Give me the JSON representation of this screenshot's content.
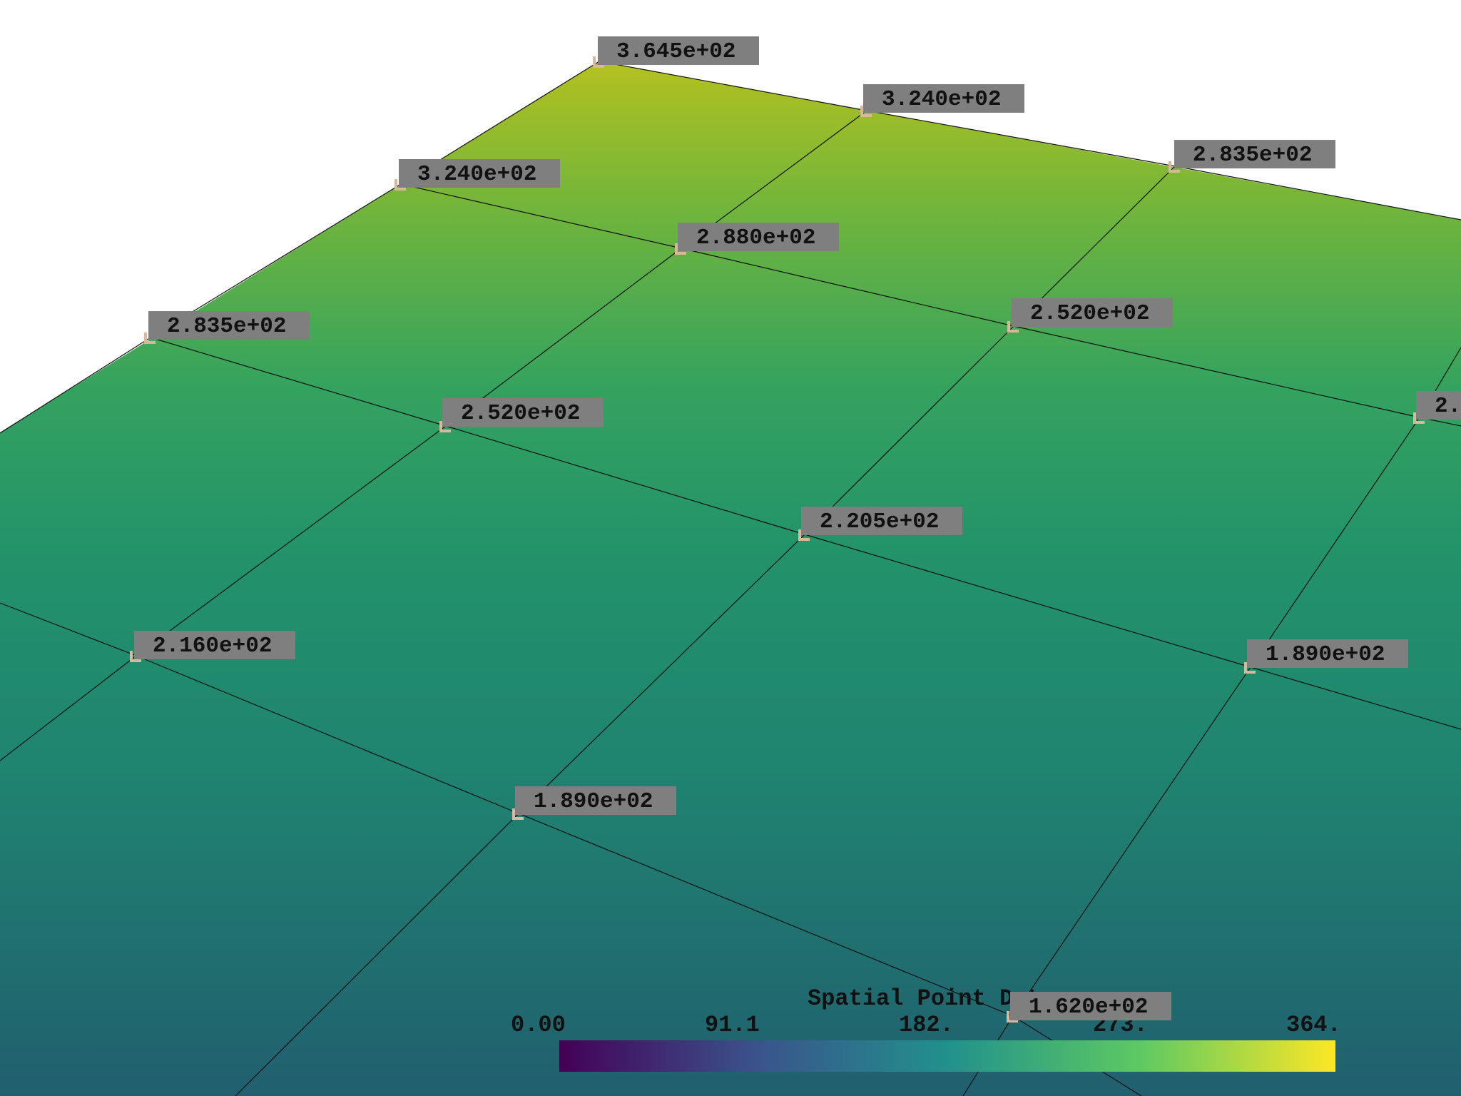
{
  "render": {
    "colormap": "viridis",
    "scalar_range": [
      0,
      364.5
    ],
    "surface": {
      "corner_values": {
        "top": 364.5,
        "bottom": 162.0
      }
    }
  },
  "point_labels": [
    "3.645e+02",
    "3.240e+02",
    "2.835e+02",
    "3.240e+02",
    "2.880e+02",
    "2.520e+02",
    "2.",
    "2.835e+02",
    "2.520e+02",
    "2.205e+02",
    "1.890e+02",
    "2.160e+02",
    "1.890e+02",
    "1.620e+02"
  ],
  "scalar_bar": {
    "title": "Spatial Point Data",
    "ticks": [
      "0.00",
      "91.1",
      "182.",
      "273.",
      "364."
    ],
    "colors": [
      "#440154",
      "#3b528b",
      "#21918c",
      "#5ec962",
      "#fde725"
    ]
  }
}
